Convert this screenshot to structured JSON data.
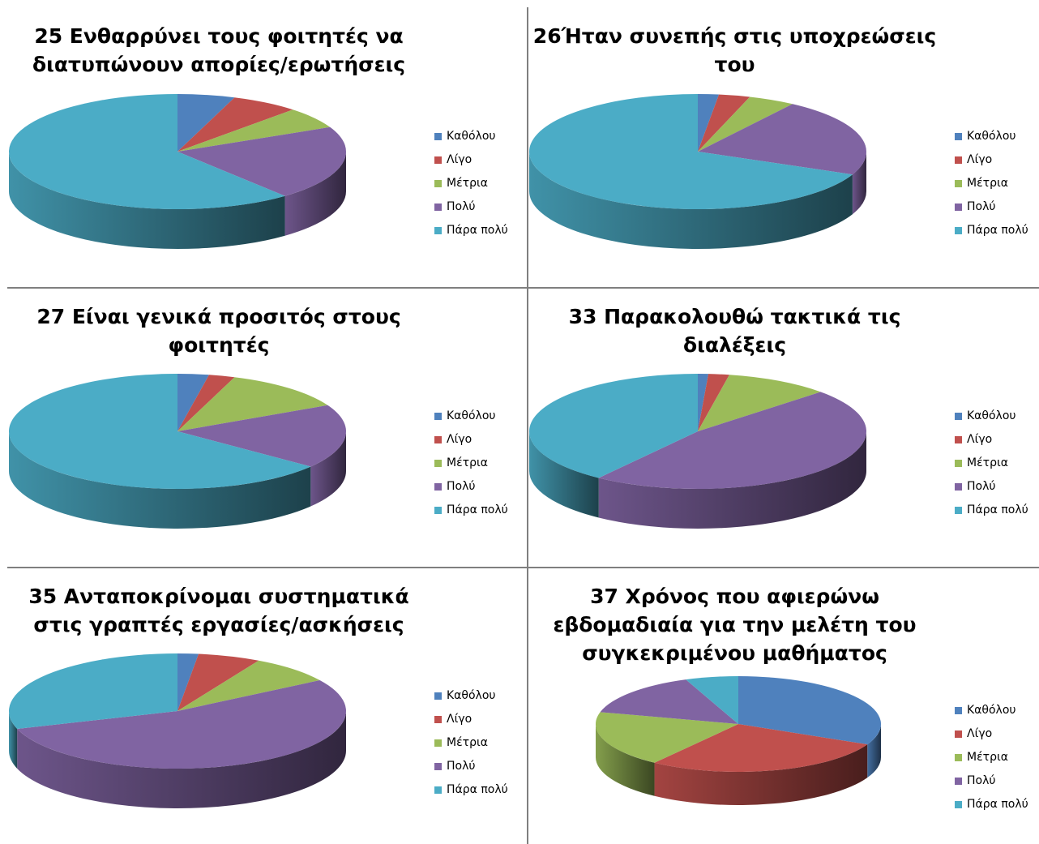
{
  "legend_labels": [
    "Καθόλου",
    "Λίγο",
    "Μέτρια",
    "Πολύ",
    "Πάρα πολύ"
  ],
  "colors": {
    "Καθόλου": "#4f81bd",
    "Λίγο": "#c0504d",
    "Μέτρια": "#9bbb59",
    "Πολύ": "#8064a2",
    "Πάρα πολύ": "#4bacc6"
  },
  "chart_data": [
    {
      "type": "pie",
      "title_lines": [
        "25 Ενθαρρύνει τους φοιτητές να",
        "διατυπώνουν απορίες/ερωτήσεις"
      ],
      "categories": [
        "Καθόλου",
        "Λίγο",
        "Μέτρια",
        "Πολύ",
        "Πάρα πολύ"
      ],
      "values": [
        5.5,
        6.5,
        6,
        21,
        61
      ],
      "legend": "right"
    },
    {
      "type": "pie",
      "title_lines": [
        "26Ήταν συνεπής στις υποχρεώσεις",
        "του"
      ],
      "categories": [
        "Καθόλου",
        "Λίγο",
        "Μέτρια",
        "Πολύ",
        "Πάρα πολύ"
      ],
      "values": [
        2,
        3,
        4.5,
        22,
        68.5
      ],
      "legend": "right"
    },
    {
      "type": "pie",
      "title_lines": [
        "27 Είναι γενικά προσιτός στους",
        "φοιτητές"
      ],
      "categories": [
        "Καθόλου",
        "Λίγο",
        "Μέτρια",
        "Πολύ",
        "Πάρα πολύ"
      ],
      "values": [
        3,
        2.5,
        12,
        18,
        64.5
      ],
      "legend": "right"
    },
    {
      "type": "pie",
      "title_lines": [
        "33 Παρακολουθώ τακτικά τις",
        "διαλέξεις"
      ],
      "categories": [
        "Καθόλου",
        "Λίγο",
        "Μέτρια",
        "Πολύ",
        "Πάρα πολύ"
      ],
      "values": [
        1,
        2,
        10,
        47,
        40
      ],
      "legend": "right"
    },
    {
      "type": "pie",
      "title_lines": [
        "35 Ανταποκρίνομαι συστηματικά",
        "στις γραπτές εργασίες/ασκήσεις"
      ],
      "categories": [
        "Καθόλου",
        "Λίγο",
        "Μέτρια",
        "Πολύ",
        "Πάρα πολύ"
      ],
      "values": [
        2,
        6,
        8,
        54,
        30
      ],
      "legend": "right"
    },
    {
      "type": "pie",
      "title_lines": [
        "37 Χρόνος που αφιερώνω",
        "εβδομαδιαία για την μελέτη του",
        "συγκεκριμένου μαθήματος"
      ],
      "categories": [
        "Καθόλου",
        "Λίγο",
        "Μέτρια",
        "Πολύ",
        "Πάρα πολύ"
      ],
      "values": [
        32,
        28,
        19,
        15,
        6
      ],
      "legend": "right"
    }
  ]
}
